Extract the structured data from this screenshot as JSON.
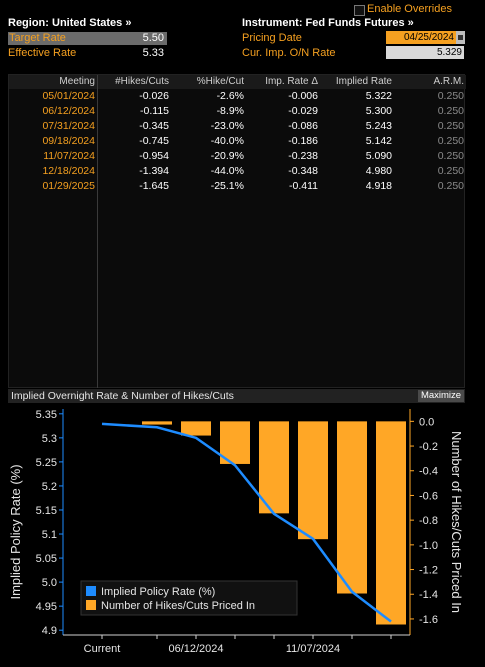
{
  "header": {
    "enable_overrides": "Enable Overrides",
    "region": "Region: United States »",
    "instrument": "Instrument: Fed Funds Futures »",
    "target_rate_label": "Target Rate",
    "target_rate_value": "5.50",
    "effective_rate_label": "Effective Rate",
    "effective_rate_value": "5.33",
    "pricing_date_label": "Pricing Date",
    "pricing_date_value": "04/25/2024",
    "cur_imp_label": "Cur. Imp. O/N Rate",
    "cur_imp_value": "5.329"
  },
  "table": {
    "columns": [
      "Meeting",
      "#Hikes/Cuts",
      "%Hike/Cut",
      "Imp. Rate Δ",
      "Implied Rate",
      "A.R.M."
    ],
    "rows": [
      {
        "meeting": "05/01/2024",
        "hikes": "-0.026",
        "pct": "-2.6%",
        "delta": "-0.006",
        "implied": "5.322",
        "arm": "0.250"
      },
      {
        "meeting": "06/12/2024",
        "hikes": "-0.115",
        "pct": "-8.9%",
        "delta": "-0.029",
        "implied": "5.300",
        "arm": "0.250"
      },
      {
        "meeting": "07/31/2024",
        "hikes": "-0.345",
        "pct": "-23.0%",
        "delta": "-0.086",
        "implied": "5.243",
        "arm": "0.250"
      },
      {
        "meeting": "09/18/2024",
        "hikes": "-0.745",
        "pct": "-40.0%",
        "delta": "-0.186",
        "implied": "5.142",
        "arm": "0.250"
      },
      {
        "meeting": "11/07/2024",
        "hikes": "-0.954",
        "pct": "-20.9%",
        "delta": "-0.238",
        "implied": "5.090",
        "arm": "0.250"
      },
      {
        "meeting": "12/18/2024",
        "hikes": "-1.394",
        "pct": "-44.0%",
        "delta": "-0.348",
        "implied": "4.980",
        "arm": "0.250"
      },
      {
        "meeting": "01/29/2025",
        "hikes": "-1.645",
        "pct": "-25.1%",
        "delta": "-0.411",
        "implied": "4.918",
        "arm": "0.250"
      }
    ]
  },
  "chart_header": {
    "title": "Implied Overnight Rate & Number of Hikes/Cuts",
    "maximize": "Maximize"
  },
  "chart_data": {
    "type": "bar",
    "categories": [
      "Current",
      "05/01/2024",
      "06/12/2024",
      "07/31/2024",
      "09/18/2024",
      "11/07/2024",
      "12/18/2024",
      "01/29/2025"
    ],
    "x_tick_labels": [
      "Current",
      "06/12/2024",
      "11/07/2024"
    ],
    "series": [
      {
        "name": "Implied Policy Rate (%)",
        "type": "line",
        "axis": "left",
        "color": "#1e8cff",
        "values": [
          5.329,
          5.322,
          5.3,
          5.243,
          5.142,
          5.09,
          4.98,
          4.918
        ]
      },
      {
        "name": "Number of Hikes/Cuts Priced In",
        "type": "bar",
        "axis": "right",
        "color": "#ffa726",
        "values": [
          0,
          -0.026,
          -0.115,
          -0.345,
          -0.745,
          -0.954,
          -1.394,
          -1.645
        ]
      }
    ],
    "ylabel": "Implied Policy Rate (%)",
    "y2label": "Number of Hikes/Cuts Priced In",
    "ylim": [
      4.89,
      5.36
    ],
    "y2lim": [
      -1.73,
      0.1
    ],
    "yticks": [
      "5.35",
      "5.3",
      "5.25",
      "5.2",
      "5.15",
      "5.1",
      "5.05",
      "5.0",
      "4.95",
      "4.9"
    ],
    "y2ticks": [
      "0.0",
      "-0.2",
      "-0.4",
      "-0.6",
      "-0.8",
      "-1.0",
      "-1.2",
      "-1.4",
      "-1.6"
    ],
    "legend": "bottom-left",
    "grid": false,
    "left_axis_color": "#1e8cff",
    "right_axis_color": "#ffa726"
  }
}
